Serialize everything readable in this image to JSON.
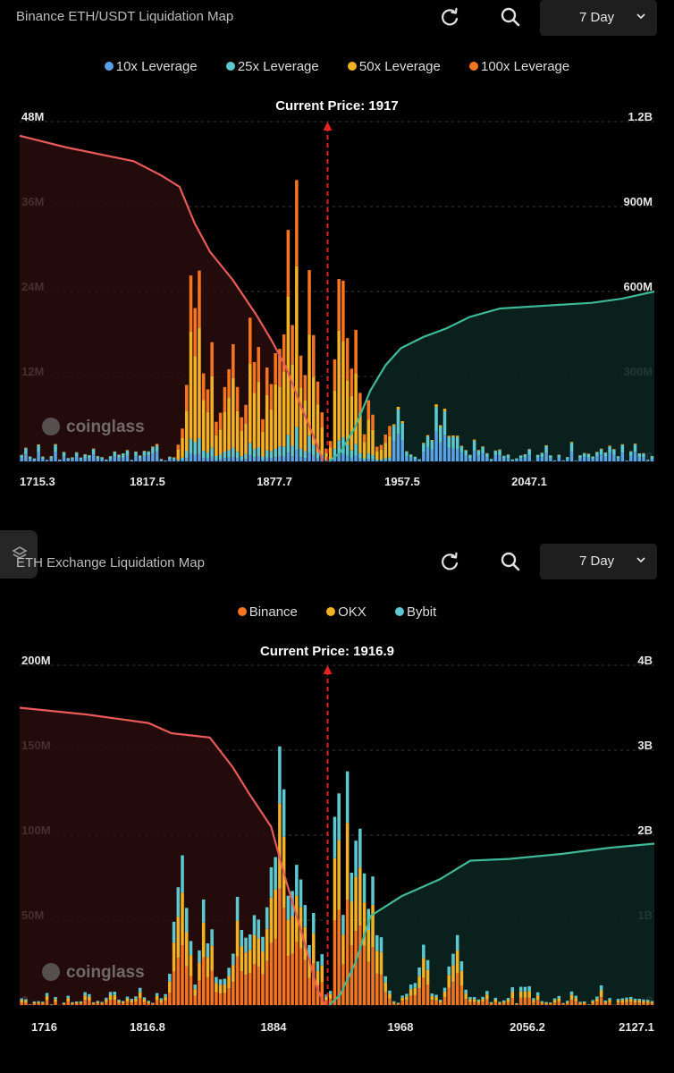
{
  "panels": [
    {
      "title": "Binance ETH/USDT Liquidation Map",
      "range": "7 Day",
      "legend": [
        {
          "label": "10x Leverage",
          "color": "#5aa2e6"
        },
        {
          "label": "25x Leverage",
          "color": "#5cc8d0"
        },
        {
          "label": "50x Leverage",
          "color": "#f2b223"
        },
        {
          "label": "100x Leverage",
          "color": "#f4741f"
        }
      ],
      "current_price": "Current Price: 1917",
      "watermark": "coinglass"
    },
    {
      "title": "ETH Exchange Liquidation Map",
      "range": "7 Day",
      "legend": [
        {
          "label": "Binance",
          "color": "#f4741f"
        },
        {
          "label": "OKX",
          "color": "#f2b223"
        },
        {
          "label": "Bybit",
          "color": "#5cc8d0"
        }
      ],
      "current_price": "Current Price: 1916.9",
      "watermark": "coinglass"
    }
  ],
  "chart_data": [
    {
      "type": "bar",
      "title": "Binance ETH/USDT Liquidation Map",
      "x_ticks": [
        "1715.3",
        "1817.5",
        "1877.7",
        "1957.5",
        "2047.1"
      ],
      "x_range": [
        1715.3,
        2131
      ],
      "y_left_ticks": [
        "0",
        "12M",
        "24M",
        "36M",
        "48M"
      ],
      "y_left_max": 48,
      "y_right_ticks": [
        "0",
        "300M",
        "600M",
        "900M",
        "1.2B"
      ],
      "y_right_max": 1200,
      "current_price": 1917,
      "series_names": [
        "10x Leverage",
        "25x Leverage",
        "50x Leverage",
        "100x Leverage"
      ],
      "colors": [
        "#5aa2e6",
        "#5cc8d0",
        "#f2b223",
        "#f4741f"
      ],
      "cum_long_color": "#e85a5a",
      "cum_short_color": "#3fb89a",
      "cum_long": [
        [
          1715.3,
          1150
        ],
        [
          1745,
          1110
        ],
        [
          1790,
          1060
        ],
        [
          1808,
          1010
        ],
        [
          1820,
          970
        ],
        [
          1830,
          840
        ],
        [
          1840,
          740
        ],
        [
          1855,
          640
        ],
        [
          1870,
          520
        ],
        [
          1880,
          430
        ],
        [
          1890,
          330
        ],
        [
          1900,
          190
        ],
        [
          1910,
          60
        ],
        [
          1914,
          0
        ]
      ],
      "cum_short": [
        [
          1918,
          0
        ],
        [
          1925,
          30
        ],
        [
          1935,
          120
        ],
        [
          1945,
          250
        ],
        [
          1955,
          340
        ],
        [
          1965,
          400
        ],
        [
          1980,
          440
        ],
        [
          1995,
          470
        ],
        [
          2010,
          510
        ],
        [
          2030,
          540
        ],
        [
          2060,
          550
        ],
        [
          2090,
          560
        ],
        [
          2110,
          575
        ],
        [
          2131,
          600
        ]
      ],
      "peaks": [
        [
          1830,
          33
        ],
        [
          1837,
          28
        ],
        [
          1855,
          30
        ],
        [
          1868,
          32
        ],
        [
          1882,
          30
        ],
        [
          1893,
          35
        ],
        [
          1898,
          42
        ],
        [
          1903,
          33
        ],
        [
          1906,
          28
        ],
        [
          1920,
          28
        ],
        [
          1926,
          37
        ],
        [
          1932,
          28
        ],
        [
          1944,
          9
        ],
        [
          1962,
          8
        ],
        [
          1990,
          11
        ],
        [
          1998,
          9
        ],
        [
          2100,
          3
        ]
      ]
    },
    {
      "type": "bar",
      "title": "ETH Exchange Liquidation Map",
      "x_ticks": [
        "1716",
        "1816.8",
        "1884",
        "1968",
        "2056.2",
        "2127.1"
      ],
      "x_range": [
        1716,
        2130
      ],
      "y_left_ticks": [
        "0",
        "50M",
        "100M",
        "150M",
        "200M"
      ],
      "y_left_max": 200,
      "y_right_ticks": [
        "0",
        "1B",
        "2B",
        "3B",
        "4B"
      ],
      "y_right_max": 4000,
      "current_price": 1916.9,
      "series_names": [
        "Binance",
        "OKX",
        "Bybit"
      ],
      "colors": [
        "#f4741f",
        "#f2b223",
        "#5cc8d0"
      ],
      "cum_long_color": "#e85a5a",
      "cum_short_color": "#3fb89a",
      "cum_long": [
        [
          1716,
          3500
        ],
        [
          1760,
          3420
        ],
        [
          1800,
          3320
        ],
        [
          1815,
          3200
        ],
        [
          1840,
          3150
        ],
        [
          1855,
          2800
        ],
        [
          1866,
          2480
        ],
        [
          1880,
          2100
        ],
        [
          1890,
          1450
        ],
        [
          1900,
          850
        ],
        [
          1910,
          200
        ],
        [
          1915,
          0
        ]
      ],
      "cum_short": [
        [
          1918,
          0
        ],
        [
          1925,
          120
        ],
        [
          1935,
          500
        ],
        [
          1945,
          1050
        ],
        [
          1965,
          1280
        ],
        [
          1990,
          1480
        ],
        [
          2010,
          1700
        ],
        [
          2035,
          1720
        ],
        [
          2070,
          1780
        ],
        [
          2100,
          1850
        ],
        [
          2130,
          1900
        ]
      ],
      "peaks": [
        [
          1822,
          110
        ],
        [
          1838,
          98
        ],
        [
          1858,
          80
        ],
        [
          1870,
          95
        ],
        [
          1880,
          150
        ],
        [
          1886,
          165
        ],
        [
          1892,
          125
        ],
        [
          1898,
          100
        ],
        [
          1908,
          55
        ],
        [
          1924,
          125
        ],
        [
          1930,
          138
        ],
        [
          1936,
          145
        ],
        [
          1942,
          128
        ],
        [
          1950,
          45
        ],
        [
          1978,
          50
        ],
        [
          2000,
          45
        ]
      ]
    }
  ]
}
